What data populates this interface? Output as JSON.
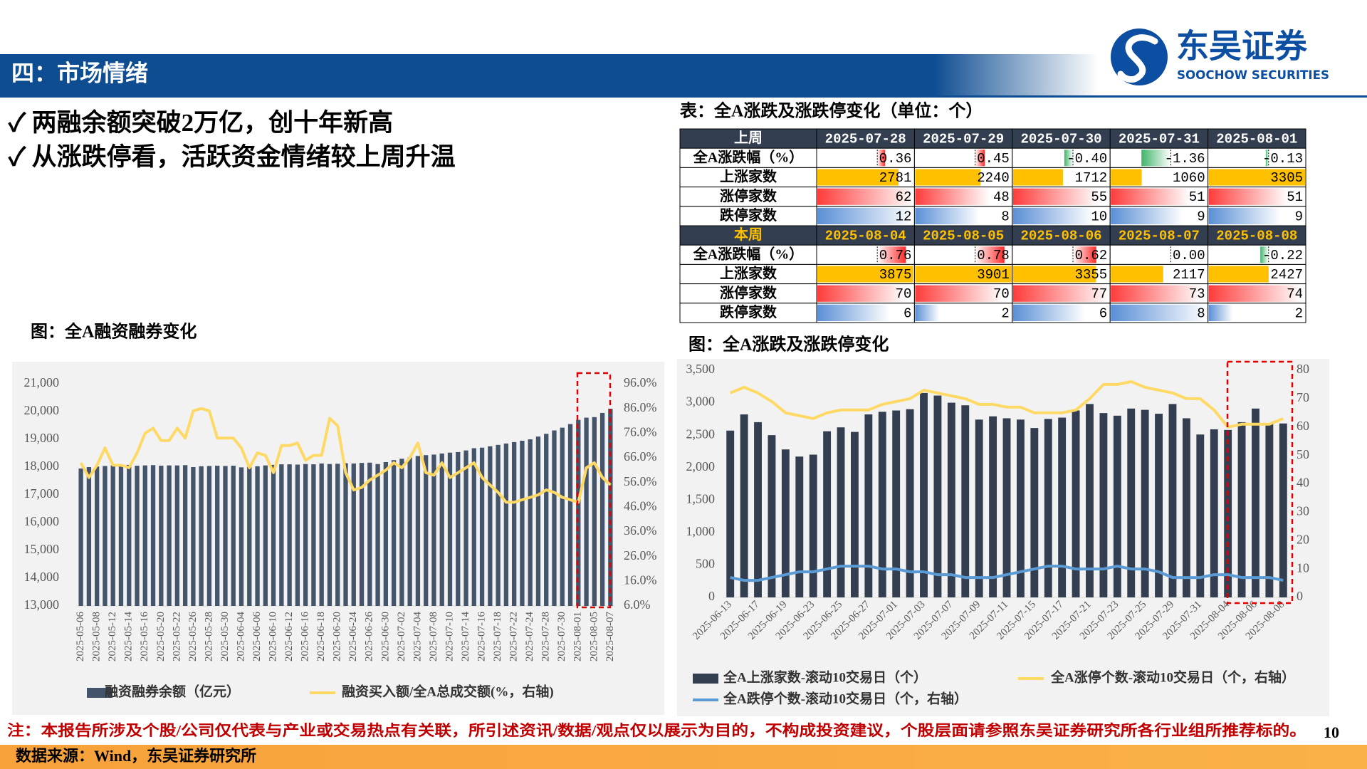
{
  "header": {
    "title": "四：市场情绪",
    "logo_cn": "东吴证券",
    "logo_en": "SOOCHOW SECURITIES"
  },
  "bullets": [
    "✓ 两融余额突破2万亿，创十年新高",
    "✓ 从涨跌停看，活跃资金情绪较上周升温"
  ],
  "table": {
    "title": "表：全A涨跌及涨跌停变化（单位：个）",
    "blocks": [
      {
        "header": [
          "上周",
          "2025-07-28",
          "2025-07-29",
          "2025-07-30",
          "2025-07-31",
          "2025-08-01"
        ],
        "rows": [
          [
            "全A涨跌幅（%）",
            "0.36",
            "0.45",
            "-0.40",
            "-1.36",
            "-0.13"
          ],
          [
            "上涨家数",
            "2781",
            "2240",
            "1712",
            "1060",
            "3305"
          ],
          [
            "涨停家数",
            "62",
            "48",
            "55",
            "51",
            "51"
          ],
          [
            "跌停家数",
            "12",
            "8",
            "10",
            "9",
            "9"
          ]
        ]
      },
      {
        "header": [
          "本周",
          "2025-08-04",
          "2025-08-05",
          "2025-08-06",
          "2025-08-07",
          "2025-08-08"
        ],
        "rows": [
          [
            "全A涨跌幅（%）",
            "0.76",
            "0.78",
            "0.62",
            "0.00",
            "-0.22"
          ],
          [
            "上涨家数",
            "3875",
            "3901",
            "3355",
            "2117",
            "2427"
          ],
          [
            "涨停家数",
            "70",
            "70",
            "77",
            "73",
            "74"
          ],
          [
            "跌停家数",
            "6",
            "2",
            "6",
            "8",
            "2"
          ]
        ]
      }
    ]
  },
  "chart_data": [
    {
      "type": "combo",
      "title": "图：全A融资融券变化",
      "categories": [
        "2025-05-06",
        null,
        "2025-05-08",
        null,
        "2025-05-12",
        null,
        "2025-05-14",
        null,
        "2025-05-16",
        null,
        "2025-05-20",
        null,
        "2025-05-22",
        null,
        "2025-05-26",
        null,
        "2025-05-28",
        null,
        "2025-05-30",
        null,
        "2025-06-04",
        null,
        "2025-06-06",
        null,
        "2025-06-10",
        null,
        "2025-06-12",
        null,
        "2025-06-16",
        null,
        "2025-06-18",
        null,
        "2025-06-20",
        null,
        "2025-06-24",
        null,
        "2025-06-26",
        null,
        "2025-06-30",
        null,
        "2025-07-02",
        null,
        "2025-07-04",
        null,
        "2025-07-08",
        null,
        "2025-07-10",
        null,
        "2025-07-14",
        null,
        "2025-07-16",
        null,
        "2025-07-18",
        null,
        "2025-07-22",
        null,
        "2025-07-24",
        null,
        "2025-07-28",
        null,
        "2025-07-30",
        null,
        "2025-08-01",
        null,
        "2025-08-05",
        null,
        "2025-08-07"
      ],
      "series": [
        {
          "name": "融资融券余额（亿元）",
          "type": "bar",
          "color": "#44546a",
          "values": [
            17950,
            18000,
            18020,
            18040,
            18060,
            18070,
            18080,
            18050,
            18060,
            18070,
            18050,
            18060,
            18060,
            18070,
            18000,
            18030,
            18040,
            18050,
            18040,
            18050,
            17990,
            18010,
            18030,
            18060,
            18080,
            18100,
            18100,
            18090,
            18110,
            18100,
            18130,
            18110,
            18120,
            18140,
            18130,
            18150,
            18160,
            18110,
            18180,
            18250,
            18300,
            18350,
            18400,
            18430,
            18450,
            18490,
            18520,
            18540,
            18600,
            18680,
            18700,
            18750,
            18800,
            18850,
            18900,
            18950,
            19000,
            19100,
            19200,
            19320,
            19420,
            19550,
            19700,
            19780,
            19800,
            19950,
            20100
          ]
        },
        {
          "name": "融资买入额/全A总成交额(%，右轴)",
          "type": "line",
          "axis": "y2",
          "color": "#ffd966",
          "values": [
            64,
            58,
            63,
            70,
            63,
            63,
            62,
            68,
            76,
            78,
            73,
            73,
            78,
            74,
            85,
            86,
            85,
            74,
            74,
            74,
            70,
            62,
            68,
            67,
            60,
            71,
            71,
            72,
            65,
            67,
            67,
            82,
            79,
            60,
            53,
            54,
            57,
            59,
            61,
            64,
            62,
            66,
            72,
            60,
            59,
            64,
            58,
            60,
            62,
            64,
            58,
            55,
            52,
            48,
            48,
            49,
            50,
            51,
            53,
            52,
            50,
            49,
            48,
            62,
            64,
            58,
            55
          ]
        }
      ],
      "ylim": [
        13000,
        21000
      ],
      "yticks": [
        {
          "value": 13000,
          "label": "13,000"
        },
        {
          "value": 14000,
          "label": "14,000"
        },
        {
          "value": 15000,
          "label": "15,000"
        },
        {
          "value": 16000,
          "label": "16,000"
        },
        {
          "value": 17000,
          "label": "17,000"
        },
        {
          "value": 18000,
          "label": "18,000"
        },
        {
          "value": 19000,
          "label": "19,000"
        },
        {
          "value": 20000,
          "label": "20,000"
        },
        {
          "value": 21000,
          "label": "21,000"
        }
      ],
      "y2lim": [
        6,
        96
      ],
      "y2ticks": [
        {
          "value": 6,
          "label": "6.0%"
        },
        {
          "value": 16,
          "label": "16.0%"
        },
        {
          "value": 26,
          "label": "26.0%"
        },
        {
          "value": 36,
          "label": "36.0%"
        },
        {
          "value": 46,
          "label": "46.0%"
        },
        {
          "value": 56,
          "label": "56.0%"
        },
        {
          "value": 66,
          "label": "66.0%"
        },
        {
          "value": 76,
          "label": "76.0%"
        },
        {
          "value": 86,
          "label": "86.0%"
        },
        {
          "value": 96,
          "label": "96.0%"
        }
      ]
    },
    {
      "type": "combo",
      "title": "图：全A涨跌及涨跌停变化",
      "categories": [
        "2025-06-13",
        null,
        "2025-06-17",
        null,
        "2025-06-19",
        null,
        "2025-06-23",
        null,
        "2025-06-25",
        null,
        "2025-06-27",
        null,
        "2025-07-01",
        null,
        "2025-07-03",
        null,
        "2025-07-07",
        null,
        "2025-07-09",
        null,
        "2025-07-11",
        null,
        "2025-07-15",
        null,
        "2025-07-17",
        null,
        "2025-07-21",
        null,
        "2025-07-23",
        null,
        "2025-07-25",
        null,
        "2025-07-29",
        null,
        "2025-07-31",
        null,
        "2025-08-04",
        null,
        "2025-08-06",
        null,
        "2025-08-08"
      ],
      "series": [
        {
          "name": "全A上涨家数-滚动10交易日（个）",
          "type": "bar",
          "color": "#333f50",
          "values": [
            2570,
            2820,
            2700,
            2500,
            2280,
            2170,
            2200,
            2560,
            2620,
            2550,
            2820,
            2860,
            2880,
            2900,
            3150,
            3110,
            3000,
            2960,
            2740,
            2790,
            2760,
            2740,
            2610,
            2750,
            2770,
            2880,
            2980,
            2840,
            2800,
            2910,
            2890,
            2830,
            2980,
            2760,
            2510,
            2590,
            2580,
            2700,
            2910,
            2680,
            2680
          ]
        },
        {
          "name": "全A涨停个数-滚动10交易日（个，右轴）",
          "type": "line",
          "axis": "y2",
          "color": "#ffd966",
          "values": [
            72,
            74,
            72,
            69,
            65,
            64,
            63,
            65,
            66,
            66,
            66,
            68,
            69,
            70,
            73,
            72,
            71,
            70,
            68,
            68,
            67,
            67,
            65,
            65,
            65,
            66,
            70,
            75,
            75,
            76,
            74,
            73,
            72,
            70,
            70,
            66,
            60,
            61,
            61,
            61,
            63
          ]
        },
        {
          "name": "全A跌停个数-滚动10交易日（个，右轴）",
          "type": "line",
          "axis": "y2",
          "color": "#5b9bd5",
          "values": [
            7,
            6,
            6,
            7,
            8,
            9,
            9,
            10,
            11,
            11,
            11,
            10,
            10,
            9,
            9,
            8,
            8,
            7,
            7,
            7,
            8,
            9,
            10,
            11,
            11,
            10,
            10,
            10,
            11,
            10,
            10,
            9,
            7,
            7,
            7,
            8,
            8,
            7,
            7,
            7,
            6
          ]
        }
      ],
      "ylim": [
        0,
        3500
      ],
      "yticks": [
        0,
        500,
        {
          "value": 1000,
          "label": "1,000"
        },
        {
          "value": 1500,
          "label": "1,500"
        },
        {
          "value": 2000,
          "label": "2,000"
        },
        {
          "value": 2500,
          "label": "2,500"
        },
        {
          "value": 3000,
          "label": "3,000"
        },
        {
          "value": 3500,
          "label": "3,500"
        }
      ],
      "y2lim": [
        0,
        80
      ],
      "y2ticks": [
        0,
        10,
        20,
        30,
        40,
        50,
        60,
        70,
        80
      ]
    }
  ],
  "footer": {
    "note": "注：本报告所涉及个股/公司仅代表与产业或交易热点有关联，所引述资讯/数据/观点仅以展示为目的，不构成投资建议，个股层面请参照东吴证券研究所各行业组所推荐标的。",
    "source": "数据来源：Wind，东吴证券研究所",
    "page": "10"
  }
}
